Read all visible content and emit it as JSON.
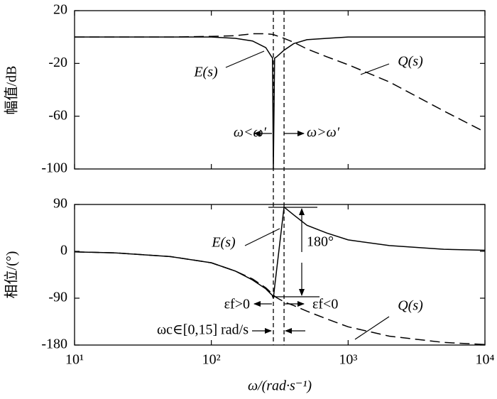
{
  "chart_data": [
    {
      "type": "line",
      "ylabel": "幅值/dB",
      "xscale": "log",
      "xlim": [
        10,
        10000
      ],
      "ylim": [
        -100,
        20
      ],
      "yticks": [
        20,
        -20,
        -60,
        -100
      ],
      "x": [
        10,
        20,
        50,
        100,
        150,
        200,
        250,
        280,
        284,
        290,
        300,
        340,
        400,
        500,
        700,
        1000,
        2000,
        5000,
        10000
      ],
      "series": [
        {
          "name": "E(s)",
          "color": "#000000",
          "linestyle": "solid",
          "values": [
            0,
            0,
            0,
            0,
            -1,
            -3,
            -8,
            -16,
            -100,
            -16,
            -15,
            -10,
            -5,
            -2,
            -1,
            0,
            0,
            0,
            0
          ]
        },
        {
          "name": "Q(s)",
          "color": "#000000",
          "linestyle": "dashed",
          "values": [
            0,
            0,
            0,
            0.5,
            1,
            2.5,
            2.5,
            2,
            2,
            1.5,
            1,
            -1,
            -4,
            -9,
            -15,
            -21,
            -34,
            -56,
            -72
          ]
        }
      ],
      "vlines": [
        284,
        340
      ],
      "annotations": [
        "ω<ω′",
        "ω>ω′"
      ]
    },
    {
      "type": "line",
      "ylabel": "相位/(°)",
      "xlabel": "ω/(rad·s⁻¹)",
      "xscale": "log",
      "xlim": [
        10,
        10000
      ],
      "ylim": [
        -180,
        90
      ],
      "yticks": [
        90,
        0,
        -90,
        -180
      ],
      "xticks": [
        {
          "value": 10,
          "label": "10¹"
        },
        {
          "value": 100,
          "label": "10²"
        },
        {
          "value": 1000,
          "label": "10³"
        },
        {
          "value": 10000,
          "label": "10⁴"
        }
      ],
      "x": [
        10,
        20,
        50,
        100,
        150,
        200,
        250,
        280,
        284,
        290,
        300,
        340,
        400,
        500,
        700,
        1000,
        2000,
        5000,
        10000
      ],
      "series": [
        {
          "name": "E(s)",
          "color": "#000000",
          "linestyle": "solid",
          "values": [
            -1,
            -3,
            -10,
            -22,
            -38,
            -55,
            -72,
            -85,
            -90,
            -69,
            -36,
            85,
            70,
            50,
            35,
            22,
            11,
            4,
            2
          ]
        },
        {
          "name": "Q(s)",
          "color": "#000000",
          "linestyle": "dashed",
          "values": [
            -1,
            -3,
            -10,
            -22,
            -38,
            -53,
            -70,
            -82,
            -84,
            -86,
            -89,
            -97,
            -104,
            -115,
            -130,
            -145,
            -163,
            -175,
            -179
          ]
        }
      ],
      "vlines": [
        284,
        340
      ],
      "annotations": [
        "180°",
        "εf>0",
        "εf<0",
        "ωc∈[0,15] rad/s"
      ]
    }
  ]
}
